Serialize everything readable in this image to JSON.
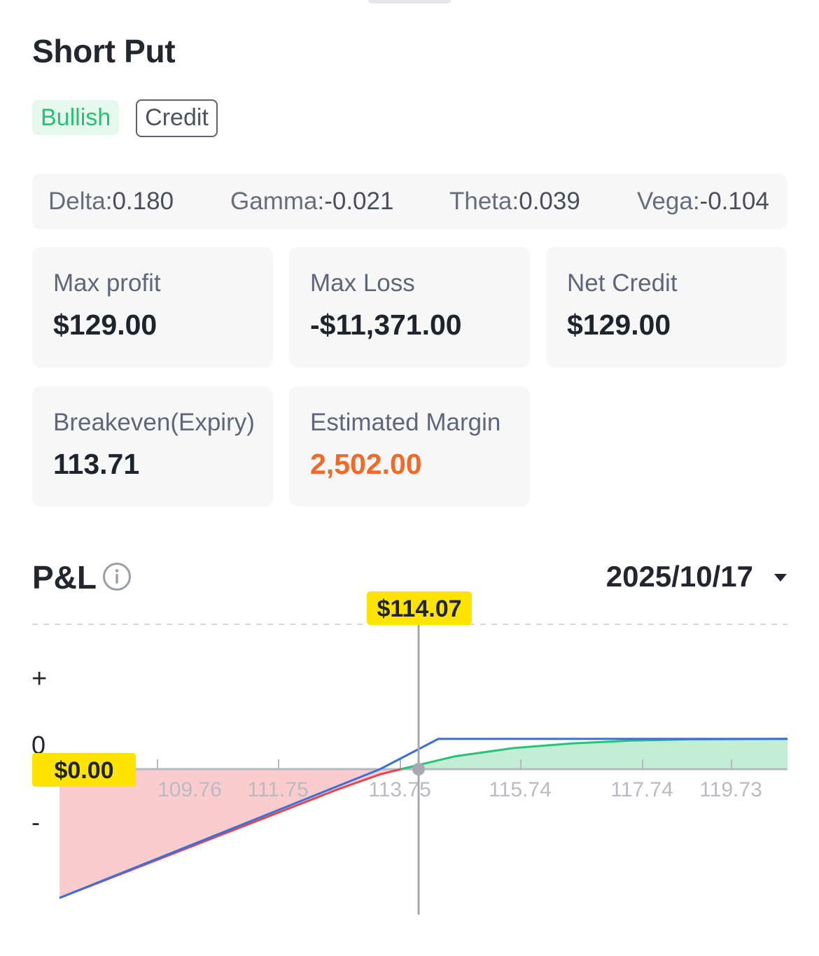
{
  "strategy": {
    "title": "Short Put",
    "tags": [
      "Bullish",
      "Credit"
    ]
  },
  "greeks": [
    {
      "name": "Delta",
      "value": "0.180"
    },
    {
      "name": "Gamma",
      "value": "-0.021"
    },
    {
      "name": "Theta",
      "value": "0.039"
    },
    {
      "name": "Vega",
      "value": "-0.104"
    }
  ],
  "metrics": {
    "max_profit": {
      "label": "Max profit",
      "value": "$129.00"
    },
    "max_loss": {
      "label": "Max Loss",
      "value": "-$11,371.00"
    },
    "net_credit": {
      "label": "Net Credit",
      "value": "$129.00"
    },
    "breakeven": {
      "label": "Breakeven(Expiry)",
      "value": "113.71"
    },
    "margin": {
      "label": "Estimated Margin",
      "value": "2,502.00"
    }
  },
  "pl": {
    "title": "P&L",
    "date": "2025/10/17",
    "current_price_label": "$114.07",
    "zero_label": "$0.00",
    "y_marks": {
      "plus": "+",
      "zero": "0",
      "minus": "-"
    }
  },
  "colors": {
    "bullish": "#27c177",
    "margin": "#f26a27",
    "expiry_line": "#3b6fdc",
    "today_loss_line": "#e8444a",
    "today_profit_line": "#27c177",
    "loss_fill": "#fbcccd",
    "profit_fill": "#c3eed6",
    "highlight": "#ffe400"
  },
  "chart_data": {
    "type": "line",
    "x_ticks": [
      "109.76",
      "111.75",
      "113.75",
      "115.74",
      "117.74",
      "119.73"
    ],
    "current_price": 114.07,
    "breakeven": 113.71,
    "series": [
      {
        "x": [
          108.21,
          113.71,
          114.71,
          120.7
        ],
        "y": [
          -550,
          0,
          129,
          129
        ]
      },
      {
        "x": [
          108.21,
          113.0,
          113.71,
          114.07,
          115.0,
          116.0,
          117.0,
          118.0,
          119.0,
          120.7
        ],
        "y": [
          -550,
          -85,
          -22,
          0,
          55,
          90,
          110,
          122,
          127,
          129
        ]
      }
    ]
  }
}
